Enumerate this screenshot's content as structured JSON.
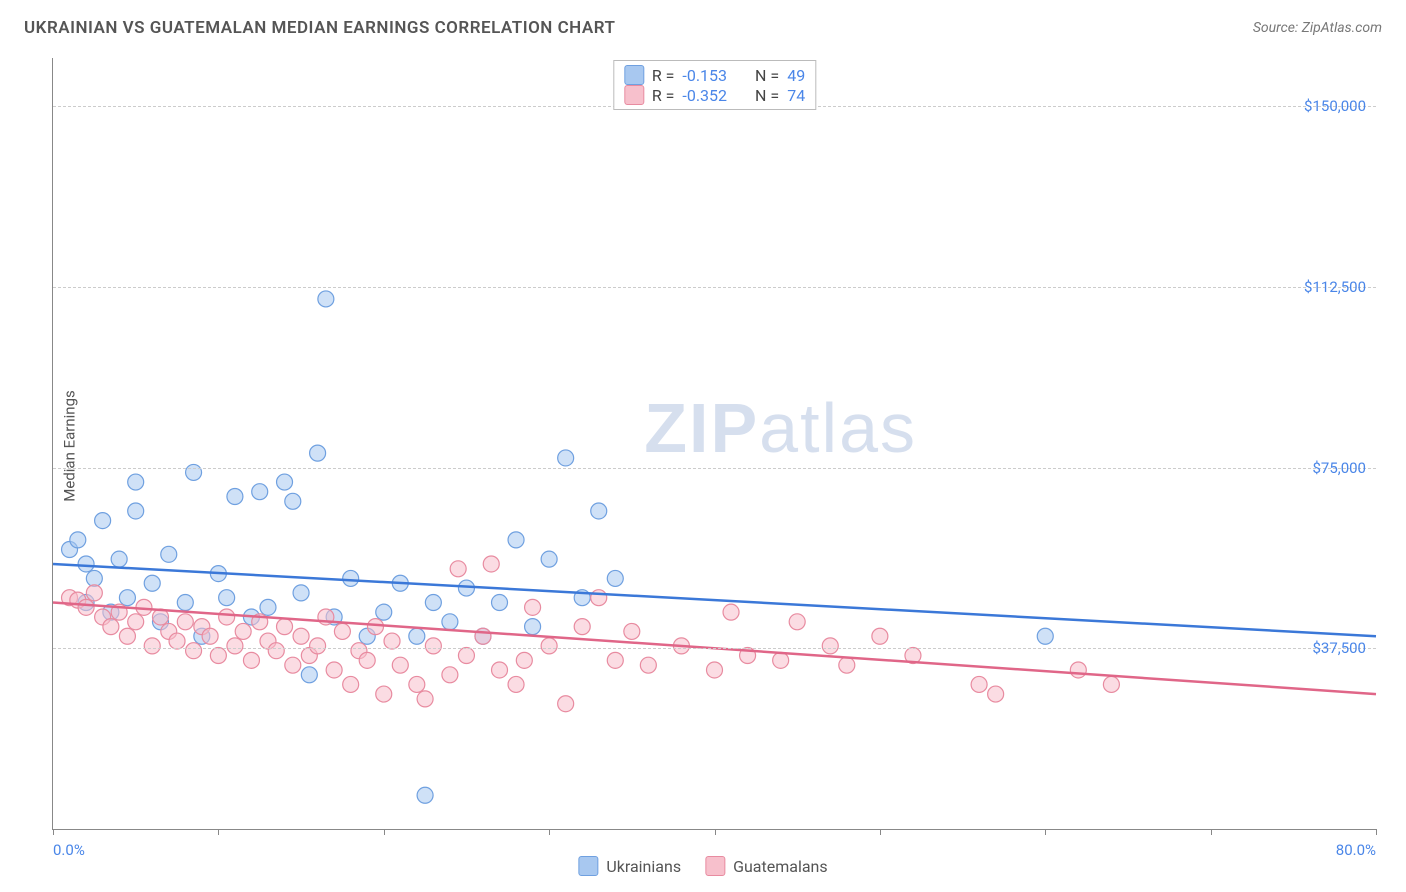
{
  "title": "UKRAINIAN VS GUATEMALAN MEDIAN EARNINGS CORRELATION CHART",
  "source": "Source: ZipAtlas.com",
  "y_axis_label": "Median Earnings",
  "watermark_zip": "ZIP",
  "watermark_atlas": "atlas",
  "chart": {
    "type": "scatter",
    "xlim": [
      0,
      80
    ],
    "ylim": [
      0,
      160000
    ],
    "x_ticks": [
      0,
      10,
      20,
      30,
      40,
      50,
      60,
      70,
      80
    ],
    "x_labels_shown": {
      "0": "0.0%",
      "80": "80.0%"
    },
    "y_gridlines": [
      37500,
      75000,
      112500,
      150000
    ],
    "y_labels": {
      "37500": "$37,500",
      "75000": "$75,000",
      "112500": "$112,500",
      "150000": "$150,000"
    },
    "background_color": "#ffffff",
    "grid_color": "#cccccc",
    "marker_radius": 8,
    "marker_opacity": 0.55,
    "marker_stroke_width": 1.2
  },
  "series": [
    {
      "name": "Ukrainians",
      "fill_color": "#a8c8f0",
      "stroke_color": "#6fa0e0",
      "line_color": "#3b78d8",
      "R": "-0.153",
      "N": "49",
      "trend": {
        "x1": 0,
        "y1": 55000,
        "x2": 80,
        "y2": 40000
      },
      "points": [
        [
          1,
          58000
        ],
        [
          1.5,
          60000
        ],
        [
          2,
          55000
        ],
        [
          2,
          47000
        ],
        [
          2.5,
          52000
        ],
        [
          3,
          64000
        ],
        [
          3.5,
          45000
        ],
        [
          4,
          56000
        ],
        [
          4.5,
          48000
        ],
        [
          5,
          66000
        ],
        [
          5,
          72000
        ],
        [
          6,
          51000
        ],
        [
          6.5,
          43000
        ],
        [
          7,
          57000
        ],
        [
          8,
          47000
        ],
        [
          8.5,
          74000
        ],
        [
          9,
          40000
        ],
        [
          10,
          53000
        ],
        [
          10.5,
          48000
        ],
        [
          11,
          69000
        ],
        [
          12,
          44000
        ],
        [
          12.5,
          70000
        ],
        [
          13,
          46000
        ],
        [
          14,
          72000
        ],
        [
          14.5,
          68000
        ],
        [
          15,
          49000
        ],
        [
          15.5,
          32000
        ],
        [
          16,
          78000
        ],
        [
          16.5,
          110000
        ],
        [
          17,
          44000
        ],
        [
          18,
          52000
        ],
        [
          19,
          40000
        ],
        [
          20,
          45000
        ],
        [
          21,
          51000
        ],
        [
          22,
          40000
        ],
        [
          22.5,
          7000
        ],
        [
          23,
          47000
        ],
        [
          24,
          43000
        ],
        [
          25,
          50000
        ],
        [
          26,
          40000
        ],
        [
          27,
          47000
        ],
        [
          28,
          60000
        ],
        [
          29,
          42000
        ],
        [
          30,
          56000
        ],
        [
          31,
          77000
        ],
        [
          32,
          48000
        ],
        [
          33,
          66000
        ],
        [
          34,
          52000
        ],
        [
          60,
          40000
        ]
      ]
    },
    {
      "name": "Guatemalans",
      "fill_color": "#f7c0cc",
      "stroke_color": "#e88ba0",
      "line_color": "#e06688",
      "R": "-0.352",
      "N": "74",
      "trend": {
        "x1": 0,
        "y1": 47000,
        "x2": 80,
        "y2": 28000
      },
      "points": [
        [
          1,
          48000
        ],
        [
          1.5,
          47500
        ],
        [
          2,
          46000
        ],
        [
          2.5,
          49000
        ],
        [
          3,
          44000
        ],
        [
          3.5,
          42000
        ],
        [
          4,
          45000
        ],
        [
          4.5,
          40000
        ],
        [
          5,
          43000
        ],
        [
          5.5,
          46000
        ],
        [
          6,
          38000
        ],
        [
          6.5,
          44000
        ],
        [
          7,
          41000
        ],
        [
          7.5,
          39000
        ],
        [
          8,
          43000
        ],
        [
          8.5,
          37000
        ],
        [
          9,
          42000
        ],
        [
          9.5,
          40000
        ],
        [
          10,
          36000
        ],
        [
          10.5,
          44000
        ],
        [
          11,
          38000
        ],
        [
          11.5,
          41000
        ],
        [
          12,
          35000
        ],
        [
          12.5,
          43000
        ],
        [
          13,
          39000
        ],
        [
          13.5,
          37000
        ],
        [
          14,
          42000
        ],
        [
          14.5,
          34000
        ],
        [
          15,
          40000
        ],
        [
          15.5,
          36000
        ],
        [
          16,
          38000
        ],
        [
          16.5,
          44000
        ],
        [
          17,
          33000
        ],
        [
          17.5,
          41000
        ],
        [
          18,
          30000
        ],
        [
          18.5,
          37000
        ],
        [
          19,
          35000
        ],
        [
          19.5,
          42000
        ],
        [
          20,
          28000
        ],
        [
          20.5,
          39000
        ],
        [
          21,
          34000
        ],
        [
          22,
          30000
        ],
        [
          22.5,
          27000
        ],
        [
          23,
          38000
        ],
        [
          24,
          32000
        ],
        [
          24.5,
          54000
        ],
        [
          25,
          36000
        ],
        [
          26,
          40000
        ],
        [
          26.5,
          55000
        ],
        [
          27,
          33000
        ],
        [
          28,
          30000
        ],
        [
          28.5,
          35000
        ],
        [
          29,
          46000
        ],
        [
          30,
          38000
        ],
        [
          31,
          26000
        ],
        [
          32,
          42000
        ],
        [
          33,
          48000
        ],
        [
          34,
          35000
        ],
        [
          35,
          41000
        ],
        [
          36,
          34000
        ],
        [
          38,
          38000
        ],
        [
          40,
          33000
        ],
        [
          41,
          45000
        ],
        [
          42,
          36000
        ],
        [
          44,
          35000
        ],
        [
          45,
          43000
        ],
        [
          47,
          38000
        ],
        [
          48,
          34000
        ],
        [
          50,
          40000
        ],
        [
          52,
          36000
        ],
        [
          56,
          30000
        ],
        [
          57,
          28000
        ],
        [
          62,
          33000
        ],
        [
          64,
          30000
        ]
      ]
    }
  ],
  "stat_labels": {
    "R": "R  =",
    "N": "N  ="
  },
  "legend_title_1": "Ukrainians",
  "legend_title_2": "Guatemalans"
}
